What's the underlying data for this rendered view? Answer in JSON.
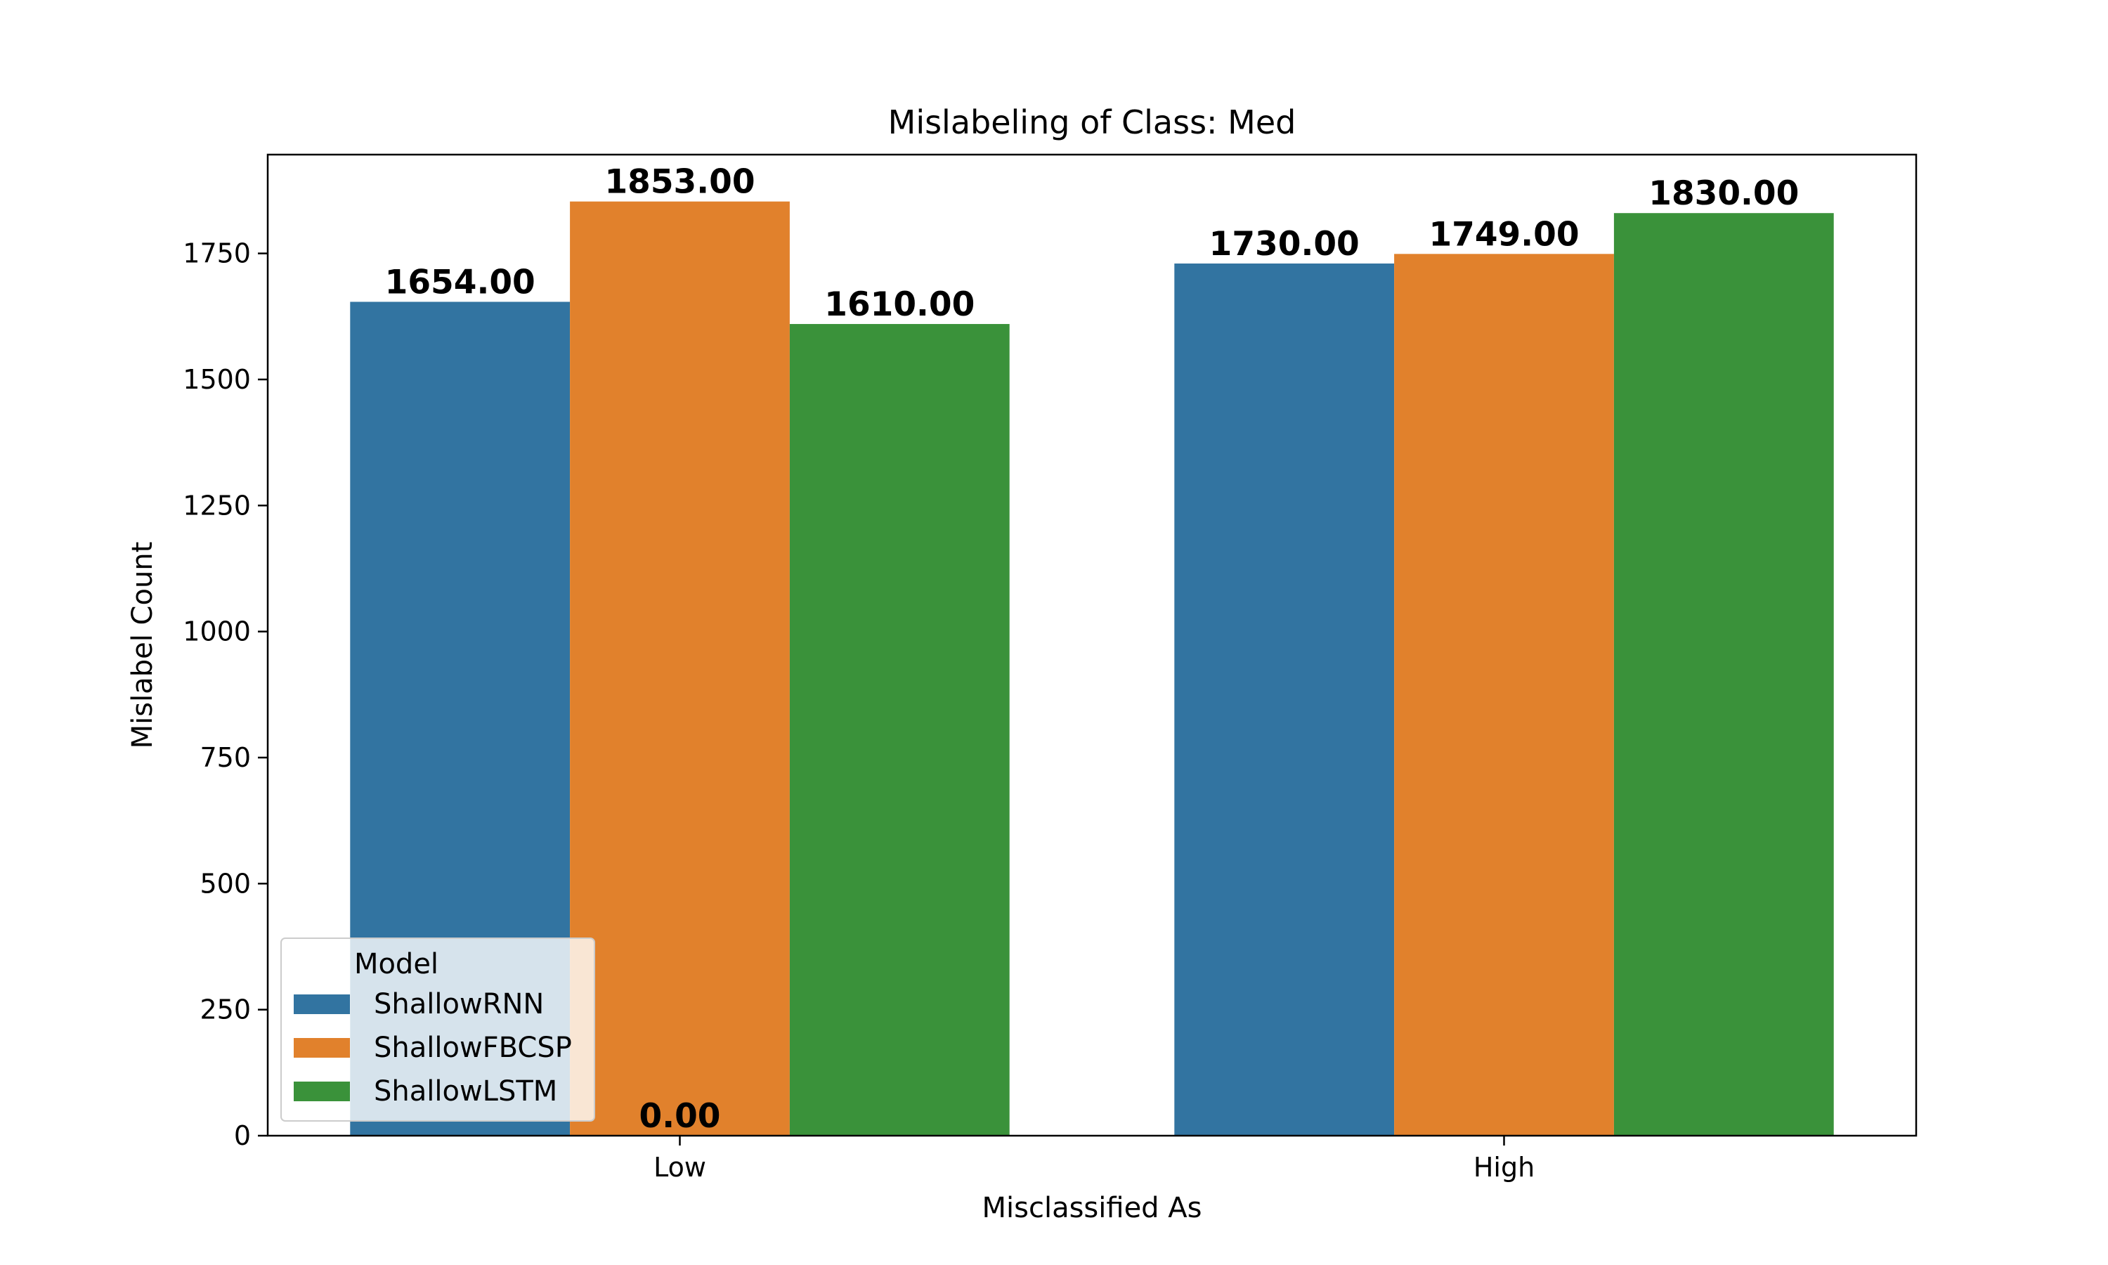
{
  "chart_data": {
    "type": "bar",
    "title": "Mislabeling of Class: Med",
    "xlabel": "Misclassified As",
    "ylabel": "Mislabel Count",
    "categories": [
      "Low",
      "High"
    ],
    "series": [
      {
        "name": "ShallowRNN",
        "color": "#3274a1",
        "values": [
          1654,
          1730
        ]
      },
      {
        "name": "ShallowFBCSP",
        "color": "#e1812c",
        "values": [
          1853,
          1749
        ]
      },
      {
        "name": "ShallowLSTM",
        "color": "#3a923a",
        "values": [
          1610,
          1830
        ]
      }
    ],
    "extra_annotations": [
      {
        "text": "0.00",
        "category": "Low",
        "y": 0
      }
    ],
    "ylim": [
      0,
      1946
    ],
    "yticks": [
      0,
      250,
      500,
      750,
      1000,
      1250,
      1500,
      1750
    ],
    "legend": {
      "title": "Model",
      "placement": "lower-left"
    },
    "grid": false,
    "label_format": "2-decimal"
  }
}
